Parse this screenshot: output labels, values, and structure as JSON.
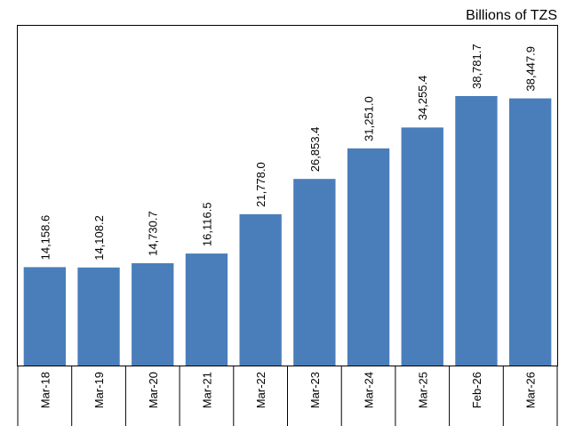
{
  "chart_data": {
    "type": "bar",
    "unit_label": "Billions of TZS",
    "categories": [
      "Mar-18",
      "Mar-19",
      "Mar-20",
      "Mar-21",
      "Mar-22",
      "Mar-23",
      "Mar-24",
      "Mar-25",
      "Feb-26",
      "Mar-26"
    ],
    "values": [
      14158.6,
      14108.2,
      14730.7,
      16116.5,
      21778.0,
      26853.4,
      31251.0,
      34255.4,
      38781.7,
      38447.9
    ],
    "value_labels": [
      "14,158.6",
      "14,108.2",
      "14,730.7",
      "16,116.5",
      "21,778.0",
      "26,853.4",
      "31,251.0",
      "34,255.4",
      "38,781.7",
      "38,447.9"
    ],
    "color": "#4a7ebb"
  }
}
